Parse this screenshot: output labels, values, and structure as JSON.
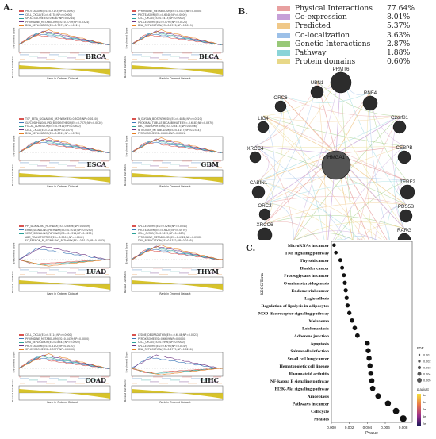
{
  "panels": {
    "a_label": "A.",
    "b_label": "B.",
    "c_label": "C."
  },
  "gsea_axes": {
    "es_label": "Enrichment Score",
    "rl_label": "Ranked List Metric",
    "x_label": "Rank in Ordered Dataset"
  },
  "gsea_plots": [
    {
      "id": "brca",
      "cancer": "BRCA",
      "legend": [
        {
          "text": "PROTEASOME(ES=0.7173;NP=0.0000)",
          "color": "#d9534f"
        },
        {
          "text": "CELL_CYCLE(ES=0.6178;NP=0.0000)",
          "color": "#3c78b8"
        },
        {
          "text": "SPLICEOSOME(ES=0.6787;NP=0.0244)",
          "color": "#2aa198"
        },
        {
          "text": "PYRIMIDINE_METABOLISM(ES=0.5749;NP=0.0324)",
          "color": "#6c3483"
        },
        {
          "text": "DNA_REPLICATION(ES=0.7079;NP=0.0121)",
          "color": "#e67e22"
        }
      ]
    },
    {
      "id": "blca",
      "cancer": "BLCA",
      "legend": [
        {
          "text": "PYRIMIDINE_METABOLISM(ES=0.5015;NP=0.0000)",
          "color": "#d9534f"
        },
        {
          "text": "PROTEASOME(ES=0.6048;NP=0.0000)",
          "color": "#3c78b8"
        },
        {
          "text": "CELL_CYCLE(ES=0.5413;NP=0.0000)",
          "color": "#2aa198"
        },
        {
          "text": "SPLICEOSOME(ES=0.4795;NP=0.0121)",
          "color": "#6c3483"
        },
        {
          "text": "DNA_REPLICATION(ES=0.5576;NP=0.0019)",
          "color": "#e67e22"
        }
      ]
    },
    {
      "id": "esca",
      "cancer": "ESCA",
      "legend": [
        {
          "text": "TGF_BETA_SIGNALING_PATHWAY(ES=0.5005;NP=0.0150)",
          "color": "#d9534f"
        },
        {
          "text": "GLYCOSPHINGOLIPID_BIOSYNTHESIS(ES=0.7070;NP=0.0020)",
          "color": "#3c78b8"
        },
        {
          "text": "FOCAL_ADHESION(ES=-0.4911;NP=0.0300)",
          "color": "#2aa198"
        },
        {
          "text": "CELL_CYCLE(ES=-0.2178;NP=0.0370)",
          "color": "#6c3483"
        },
        {
          "text": "DNA_REPLICATION(ES=0.6015;NP=0.0780)",
          "color": "#e67e22"
        }
      ]
    },
    {
      "id": "gbm",
      "cancer": "GBM",
      "legend": [
        {
          "text": "N_GLYCAN_BIOSYNTHESIS(ES=0.4888;NP=0.0520)",
          "color": "#d9534f"
        },
        {
          "text": "PROXIMAL_TUBULE_BICARBONATE(ES=-0.6183;NP=0.0370)",
          "color": "#3c78b8"
        },
        {
          "text": "ABC_TRANSPORTERS(ES=-0.5415;NP=0.0306)",
          "color": "#2aa198"
        },
        {
          "text": "NITROGEN_METABOLISM(ES=0.6157;NP=0.0344)",
          "color": "#6c3483"
        },
        {
          "text": "PEROXISOME(ES=0.6604;NP=0.0291)",
          "color": "#e67e22"
        }
      ]
    },
    {
      "id": "luad",
      "cancer": "LUAD",
      "legend": [
        {
          "text": "PPI_SIGNALING_PATHWAY(ES=-0.5806;NP=0.0049)",
          "color": "#d9534f"
        },
        {
          "text": "ERBB_SIGNALING_PATHWAY(ES=-0.5015;NP=0.0250)",
          "color": "#3c78b8"
        },
        {
          "text": "VEGF_SIGNALING_PATHWAY(ES=-0.4311;NP=0.0250)",
          "color": "#2aa198"
        },
        {
          "text": "ABC_TRANSPORTERS(ES=-0.5506;NP=0.0042)",
          "color": "#6c3483"
        },
        {
          "text": "FC_EPSILON_RI_SIGNALING_PATHWAY(ES=-0.5143;NP=0.0063)",
          "color": "#e67e22"
        }
      ]
    },
    {
      "id": "thym",
      "cancer": "THYM",
      "legend": [
        {
          "text": "SPLICEOSOME(ES=0.5264;NP=0.0041)",
          "color": "#d9534f"
        },
        {
          "text": "PROTEASOME(ES=0.6420;NP=0.0070)",
          "color": "#3c78b8"
        },
        {
          "text": "CELL_CYCLE(ES=0.5615;NP=0.0083)",
          "color": "#2aa198"
        },
        {
          "text": "PYRIMIDINE_METABOLISM(ES=0.4922;NP=0.0102)",
          "color": "#6c3483"
        },
        {
          "text": "DNA_REPLICATION(ES=0.5332;NP=0.0105)",
          "color": "#e67e22"
        }
      ]
    },
    {
      "id": "coad",
      "cancer": "COAD",
      "legend": [
        {
          "text": "CELL_CYCLE(ES=0.5114;NP=0.0000)",
          "color": "#d9534f"
        },
        {
          "text": "PYRIMIDINE_METABOLISM(ES=0.4439;NP=0.0000)",
          "color": "#3c78b8"
        },
        {
          "text": "DNA_REPLICATION(ES=0.8543;NP=0.0000)",
          "color": "#2aa198"
        },
        {
          "text": "PROTEASOME(ES=0.6172;NP=0.0020)",
          "color": "#6c3483"
        },
        {
          "text": "SPLICEOSOME(ES=0.5977;NP=0.0000)",
          "color": "#e67e22"
        }
      ]
    },
    {
      "id": "lihc",
      "cancer": "LIHC",
      "legend": [
        {
          "text": "LYSINE_DEGRADATION(ES=-0.6148;NP=0.0021)",
          "color": "#d9534f"
        },
        {
          "text": "PEROXISOME(ES=0.6609;NP=0.0000)",
          "color": "#3c78b8"
        },
        {
          "text": "CELL_CYCLE(ES=0.5996;NP=0.0000)",
          "color": "#2aa198"
        },
        {
          "text": "SPLICEOSOME(ES=0.6798;NP=0.0147)",
          "color": "#6c3483"
        },
        {
          "text": "DNA_REPLICATION(ES=0.6779;NP=0.0250)",
          "color": "#e67e22"
        }
      ]
    }
  ],
  "network_legend": [
    {
      "name": "Physical Interactions",
      "pct": "77.64%",
      "color": "#e8a0a0"
    },
    {
      "name": "Co-expression",
      "pct": "8.01%",
      "color": "#c6a0d8"
    },
    {
      "name": "Predicted",
      "pct": "5.37%",
      "color": "#f0c888"
    },
    {
      "name": "Co-localization",
      "pct": "3.63%",
      "color": "#9cc0e8"
    },
    {
      "name": "Genetic Interactions",
      "pct": "2.87%",
      "color": "#98c878"
    },
    {
      "name": "Pathway",
      "pct": "1.88%",
      "color": "#8ad4d8"
    },
    {
      "name": "Protein domains",
      "pct": "0.60%",
      "color": "#e8d888"
    }
  ],
  "network_nodes": {
    "center": "HMGA1",
    "genes": [
      "UBN1",
      "PRMT6",
      "RNF4",
      "ORC6",
      "C2orf81",
      "LIG4",
      "CEBPB",
      "XRCC4",
      "CABIN1",
      "TERF2",
      "ORC2",
      "PDS5B",
      "XRCC6",
      "RARG",
      "XRCC5",
      "SETBP1",
      "BCL6",
      "STAG2",
      "SRF"
    ]
  },
  "chart_data": {
    "type": "scatter",
    "title": "",
    "xlabel": "Pvalue",
    "ylabel": "KEGG Term",
    "x_ticks": [
      "0.000",
      "0.002",
      "0.004",
      "0.006",
      "0.008"
    ],
    "xlim": [
      0,
      0.009
    ],
    "categories": [
      "MicroRNAs in cancer",
      "TNF signaling pathway",
      "Thyroid cancer",
      "Bladder cancer",
      "Proteoglycans in cancer",
      "Ovarian steroidogenesis",
      "Endometrial cancer",
      "Legionellosis",
      "Regulation of lipolysis in adipocytes",
      "NOD-like receptor signaling pathway",
      "Melanoma",
      "Leishmaniasis",
      "Adherens junction",
      "Apoptosis",
      "Salmonella infection",
      "Small cell lung cancer",
      "Hematopoietic cell lineage",
      "Rheumatoid arthritis",
      "NF-kappa B signaling pathway",
      "PI3K-Akt signaling pathway",
      "Amoebiasis",
      "Pathways in cancer",
      "Cell cycle",
      "Measles"
    ],
    "x": [
      0.0003,
      0.0005,
      0.001,
      0.0012,
      0.0014,
      0.0015,
      0.0016,
      0.0017,
      0.0018,
      0.002,
      0.0023,
      0.0026,
      0.0029,
      0.004,
      0.0041,
      0.0042,
      0.0043,
      0.0044,
      0.0045,
      0.0046,
      0.0052,
      0.0063,
      0.0072,
      0.008
    ],
    "legend": {
      "count_title": "FDR",
      "count_values": [
        "0.001",
        "0.002",
        "0.003",
        "0.004",
        "0.005"
      ],
      "color_title": "p.adjust",
      "color_values": [
        "6e",
        "5e",
        "4e",
        "3e",
        "2e"
      ]
    }
  }
}
